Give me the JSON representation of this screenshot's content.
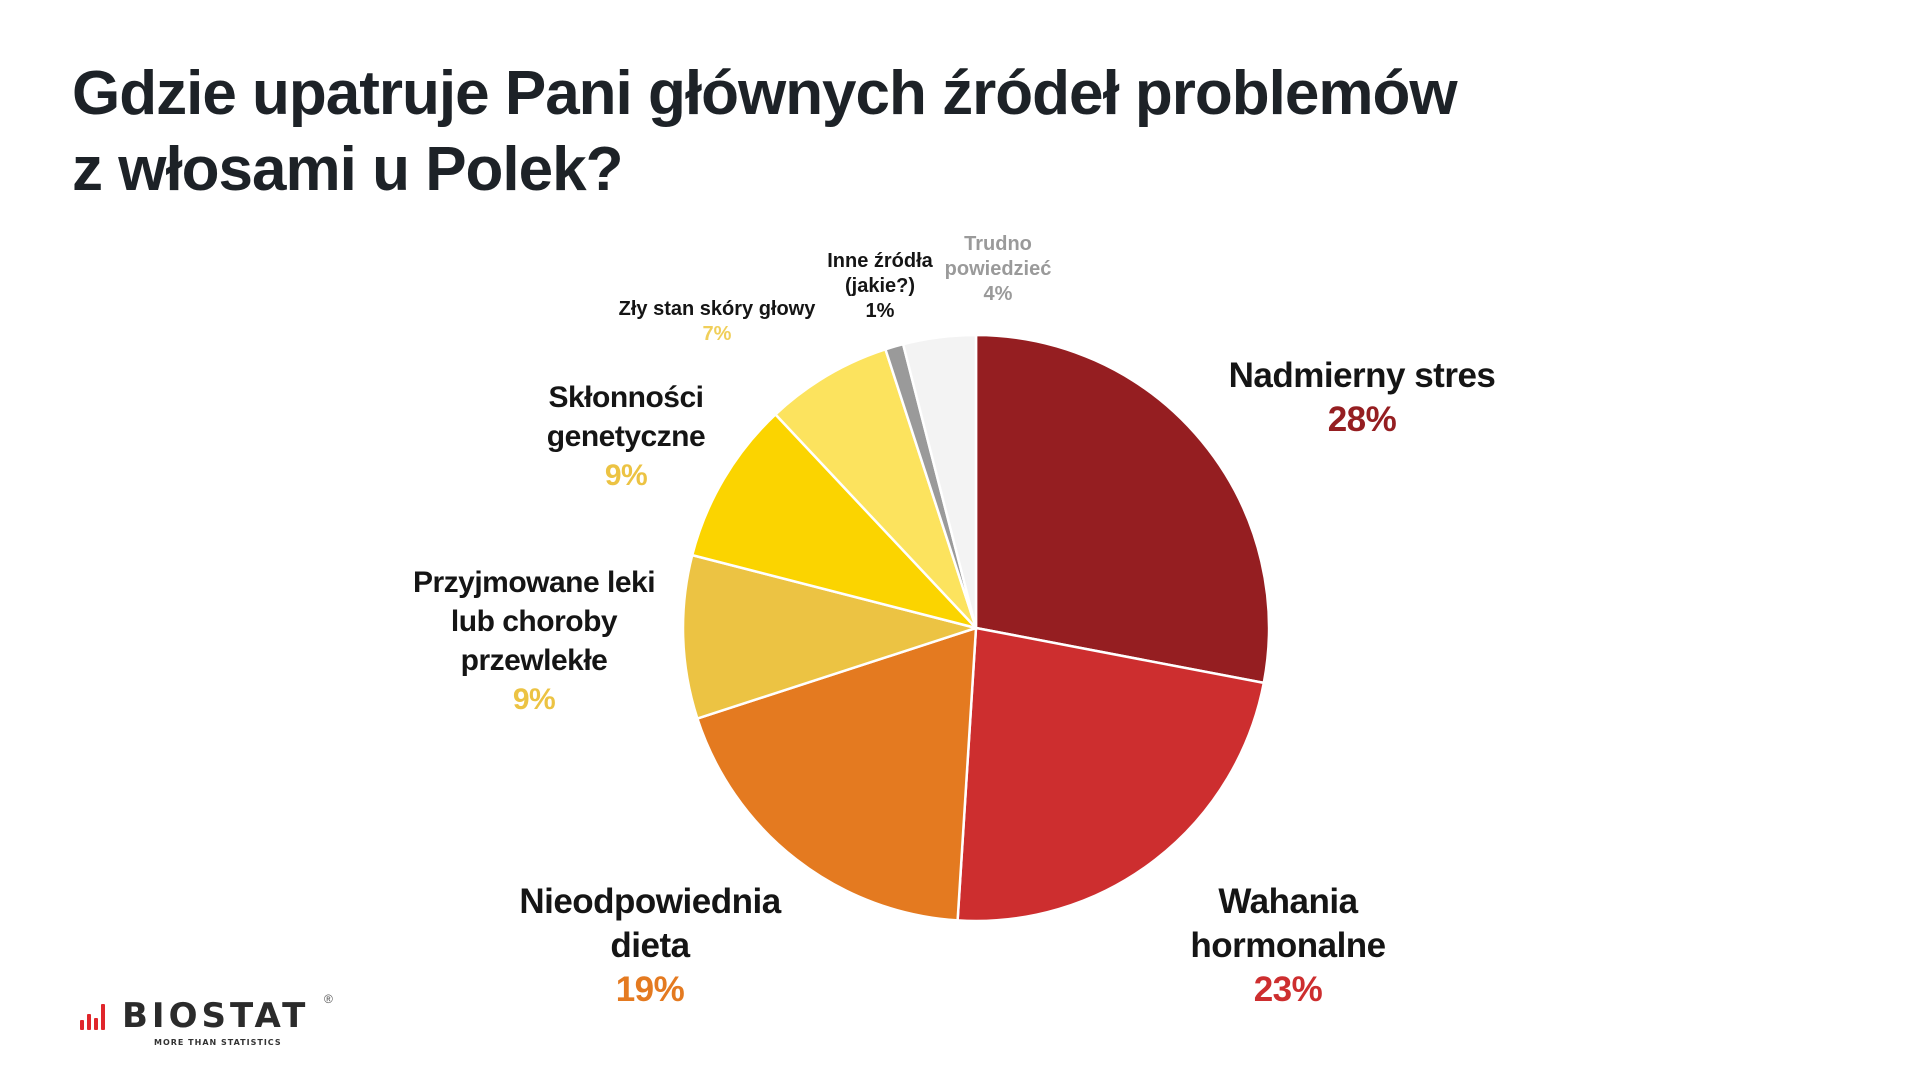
{
  "title": {
    "line1": "Gdzie upatruje Pani głównych źródeł problemów",
    "line2": "z włosami u Polek?"
  },
  "logo": {
    "name": "BIOSTAT",
    "registered": "®",
    "tagline": "MORE THAN STATISTICS",
    "accent_color": "#e0262b"
  },
  "chart_data": {
    "type": "pie",
    "title": "Gdzie upatruje Pani głównych źródeł problemów z włosami u Polek?",
    "start_angle": "12 o'clock, clockwise",
    "slices": [
      {
        "label": "Nadmierny stres",
        "value": 28,
        "display": "28%",
        "color": "#951e21",
        "label_color": "#951e21"
      },
      {
        "label": "Wahania hormonalne",
        "value": 23,
        "display": "23%",
        "color": "#cd2e2f",
        "label_color": "#cd2e2f"
      },
      {
        "label": "Nieodpowiednia dieta",
        "value": 19,
        "display": "19%",
        "color": "#e47a20",
        "label_color": "#e47a20"
      },
      {
        "label": "Przyjmowane leki lub choroby przewlekłe",
        "value": 9,
        "display": "9%",
        "color": "#ecc343",
        "label_color": "#ecc343"
      },
      {
        "label": "Skłonności genetyczne",
        "value": 9,
        "display": "9%",
        "color": "#fbd400",
        "label_color": "#ecc343"
      },
      {
        "label": "Zły stan skóry głowy",
        "value": 7,
        "display": "7%",
        "color": "#fce35e",
        "label_color": "#f0cf5a"
      },
      {
        "label": "Inne źródła (jakie?)",
        "value": 1,
        "display": "1%",
        "color": "#9a9a9a",
        "label_color": "#151515"
      },
      {
        "label": "Trudno powiedzieć",
        "value": 4,
        "display": "4%",
        "color": "#f3f3f3",
        "label_color": "#9a9a9a"
      }
    ]
  },
  "labels": {
    "stres": {
      "lines": [
        "Nadmierny stres"
      ],
      "pct": "28%"
    },
    "hormony": {
      "lines": [
        "Wahania",
        "hormonalne"
      ],
      "pct": "23%"
    },
    "dieta": {
      "lines": [
        "Nieodpowiednia",
        "dieta"
      ],
      "pct": "19%"
    },
    "leki": {
      "lines": [
        "Przyjmowane leki",
        "lub choroby",
        "przewlekłe"
      ],
      "pct": "9%"
    },
    "genetyka": {
      "lines": [
        "Skłonności",
        "genetyczne"
      ],
      "pct": "9%"
    },
    "skora": {
      "lines": [
        "Zły stan skóry głowy"
      ],
      "pct": "7%"
    },
    "inne": {
      "lines": [
        "Inne źródła",
        "(jakie?)"
      ],
      "pct": "1%"
    },
    "trudno": {
      "lines": [
        "Trudno",
        "powiedzieć"
      ],
      "pct": "4%"
    }
  }
}
